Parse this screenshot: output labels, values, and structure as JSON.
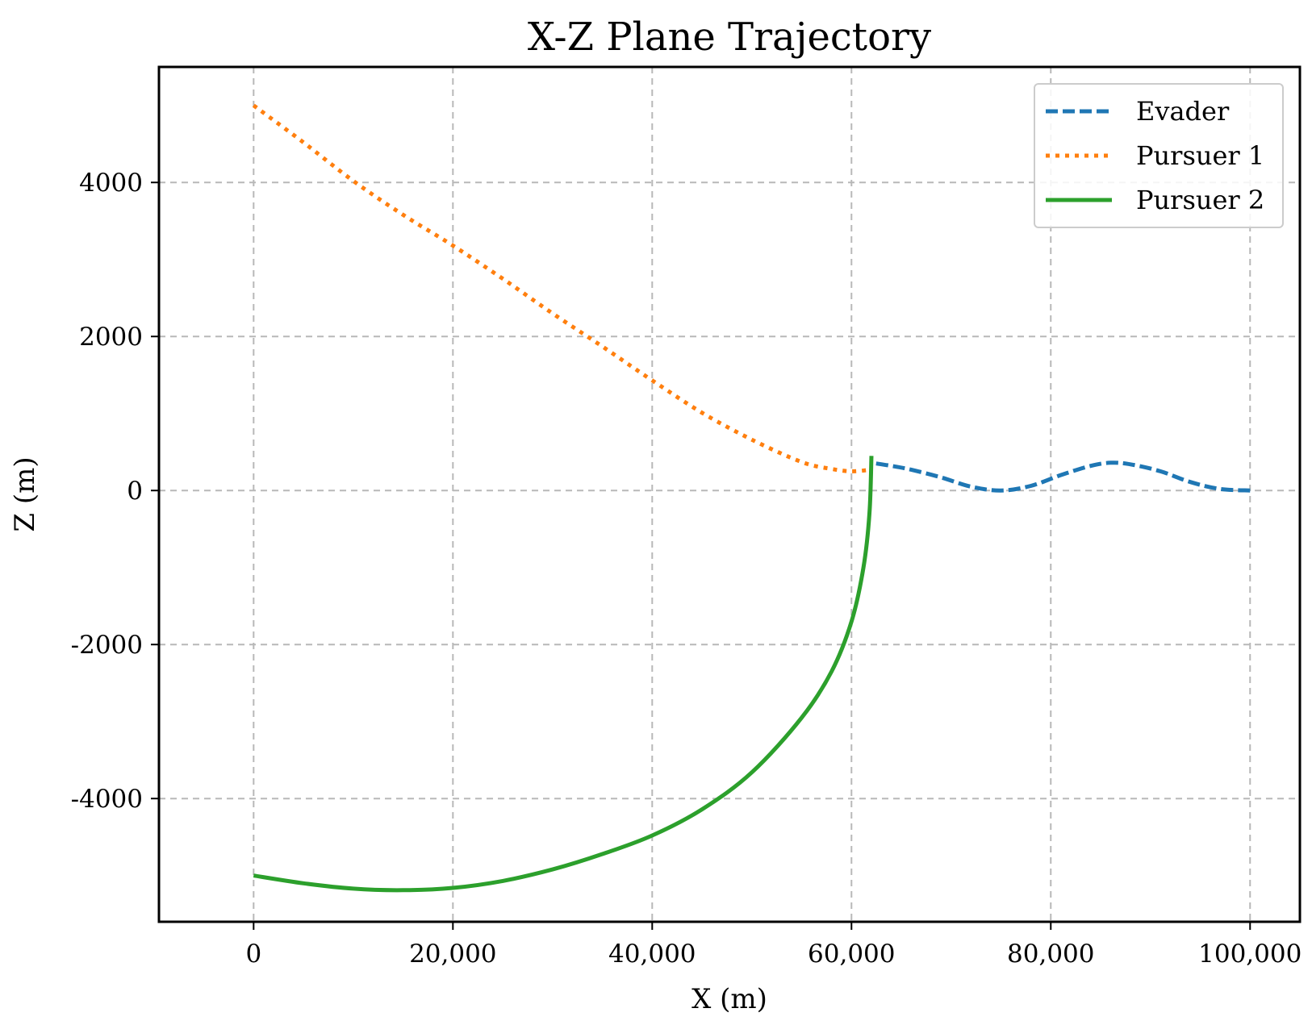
{
  "chart_data": {
    "type": "line",
    "title": "X-Z Plane Trajectory",
    "xlabel": "X (m)",
    "ylabel": "Z (m)",
    "xlim": [
      -9500,
      105000
    ],
    "ylim": [
      -5600,
      5500
    ],
    "xticks": [
      0,
      20000,
      40000,
      60000,
      80000,
      100000
    ],
    "xtick_labels": [
      "0",
      "20,000",
      "40,000",
      "60,000",
      "80,000",
      "100,000"
    ],
    "yticks": [
      -4000,
      -2000,
      0,
      2000,
      4000
    ],
    "ytick_labels": [
      "-4000",
      "-2000",
      "0",
      "2000",
      "4000"
    ],
    "grid": true,
    "legend_position": "top-right",
    "series": [
      {
        "name": "Evader",
        "color": "#1f77b4",
        "style": "dashed",
        "x": [
          100000,
          97000,
          94000,
          91000,
          88000,
          86000,
          84000,
          81000,
          78000,
          75000,
          72000,
          69000,
          66000,
          64000,
          62000
        ],
        "y": [
          0,
          20,
          110,
          250,
          340,
          360,
          320,
          200,
          60,
          0,
          50,
          170,
          270,
          320,
          360
        ]
      },
      {
        "name": "Pursuer 1",
        "color": "#ff7f0e",
        "style": "dotted",
        "x": [
          0,
          5000,
          10000,
          15000,
          20000,
          25000,
          30000,
          35000,
          40000,
          45000,
          50000,
          55000,
          58000,
          60000,
          62000
        ],
        "y": [
          5000,
          4520,
          4020,
          3580,
          3180,
          2750,
          2300,
          1870,
          1430,
          1010,
          660,
          370,
          280,
          250,
          270
        ]
      },
      {
        "name": "Pursuer 2",
        "color": "#2ca02c",
        "style": "solid",
        "x": [
          0,
          5000,
          10000,
          15000,
          20000,
          25000,
          30000,
          35000,
          40000,
          45000,
          50000,
          55000,
          58000,
          60000,
          61200,
          61800,
          62000
        ],
        "y": [
          -5000,
          -5100,
          -5170,
          -5190,
          -5160,
          -5070,
          -4920,
          -4720,
          -4480,
          -4140,
          -3660,
          -2950,
          -2350,
          -1700,
          -1000,
          -300,
          450
        ]
      }
    ]
  }
}
